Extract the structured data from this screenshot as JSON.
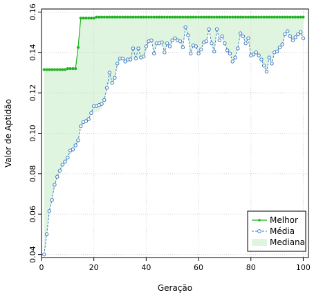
{
  "chart_data": {
    "type": "line",
    "xlabel": "Geração",
    "ylabel": "Valor de Aptidão",
    "xlim": [
      0,
      102
    ],
    "ylim": [
      0.0385,
      0.1615
    ],
    "xticks": [
      0,
      20,
      40,
      60,
      80,
      100
    ],
    "yticks": [
      0.04,
      0.06,
      0.08,
      0.1,
      0.12,
      0.14,
      0.16
    ],
    "ytick_labels": [
      "0.04",
      "0.06",
      "0.08",
      "0.10",
      "0.12",
      "0.14",
      "0.16"
    ],
    "grid": true,
    "legend_position": "bottom-right",
    "colors": {
      "melhor": "#22b222",
      "media": "#3a78c2",
      "mediana": "#dff5df"
    },
    "series": [
      {
        "name": "Melhor",
        "style": "solid line with filled points",
        "x": [
          1,
          2,
          3,
          4,
          5,
          6,
          7,
          8,
          9,
          10,
          11,
          12,
          13,
          14,
          15,
          16,
          17,
          18,
          19,
          20,
          21,
          22,
          23,
          24,
          25,
          26,
          27,
          28,
          29,
          30,
          31,
          32,
          33,
          34,
          35,
          36,
          37,
          38,
          39,
          40,
          41,
          42,
          43,
          44,
          45,
          46,
          47,
          48,
          49,
          50,
          51,
          52,
          53,
          54,
          55,
          56,
          57,
          58,
          59,
          60,
          61,
          62,
          63,
          64,
          65,
          66,
          67,
          68,
          69,
          70,
          71,
          72,
          73,
          74,
          75,
          76,
          77,
          78,
          79,
          80,
          81,
          82,
          83,
          84,
          85,
          86,
          87,
          88,
          89,
          90,
          91,
          92,
          93,
          94,
          95,
          96,
          97,
          98,
          99,
          100
        ],
        "values": [
          0.1315,
          0.1315,
          0.1315,
          0.1315,
          0.1315,
          0.1315,
          0.1315,
          0.1315,
          0.1315,
          0.132,
          0.132,
          0.132,
          0.132,
          0.1425,
          0.157,
          0.157,
          0.157,
          0.157,
          0.157,
          0.157,
          0.1575,
          0.1575,
          0.1575,
          0.1575,
          0.1575,
          0.1575,
          0.1575,
          0.1575,
          0.1575,
          0.1575,
          0.1575,
          0.1575,
          0.1575,
          0.1575,
          0.1575,
          0.1575,
          0.1575,
          0.1575,
          0.1575,
          0.1575,
          0.1575,
          0.1575,
          0.1575,
          0.1575,
          0.1575,
          0.1575,
          0.1575,
          0.1575,
          0.1575,
          0.1575,
          0.1575,
          0.1575,
          0.1575,
          0.1575,
          0.1575,
          0.1575,
          0.1575,
          0.1575,
          0.1575,
          0.1575,
          0.1575,
          0.1575,
          0.1575,
          0.1575,
          0.1575,
          0.1575,
          0.1575,
          0.1575,
          0.1575,
          0.1575,
          0.1575,
          0.1575,
          0.1575,
          0.1575,
          0.1575,
          0.1575,
          0.1575,
          0.1575,
          0.1575,
          0.1575,
          0.1575,
          0.1575,
          0.1575,
          0.1575,
          0.1575,
          0.1575,
          0.1575,
          0.1575,
          0.1575,
          0.1575,
          0.1575,
          0.1575,
          0.1575,
          0.1575,
          0.1575,
          0.1575,
          0.1575,
          0.1575,
          0.1575,
          0.1575
        ]
      },
      {
        "name": "Média",
        "style": "dashed line with open circles",
        "x": [
          1,
          2,
          3,
          4,
          5,
          6,
          7,
          8,
          9,
          10,
          11,
          12,
          13,
          14,
          15,
          16,
          17,
          18,
          19,
          20,
          21,
          22,
          23,
          24,
          25,
          26,
          27,
          28,
          29,
          30,
          31,
          32,
          33,
          34,
          35,
          36,
          37,
          38,
          39,
          40,
          41,
          42,
          43,
          44,
          45,
          46,
          47,
          48,
          49,
          50,
          51,
          52,
          53,
          54,
          55,
          56,
          57,
          58,
          59,
          60,
          61,
          62,
          63,
          64,
          65,
          66,
          67,
          68,
          69,
          70,
          71,
          72,
          73,
          74,
          75,
          76,
          77,
          78,
          79,
          80,
          81,
          82,
          83,
          84,
          85,
          86,
          87,
          88,
          89,
          90,
          91,
          92,
          93,
          94,
          95,
          96,
          97,
          98,
          99,
          100
        ],
        "values": [
          0.04,
          0.05,
          0.0615,
          0.067,
          0.0745,
          0.0785,
          0.0815,
          0.0845,
          0.086,
          0.088,
          0.0915,
          0.092,
          0.094,
          0.0965,
          0.1035,
          0.1055,
          0.106,
          0.107,
          0.11,
          0.1135,
          0.1135,
          0.114,
          0.1145,
          0.1165,
          0.1225,
          0.13,
          0.125,
          0.1275,
          0.1345,
          0.137,
          0.137,
          0.1355,
          0.1365,
          0.1365,
          0.142,
          0.137,
          0.142,
          0.1375,
          0.138,
          0.143,
          0.1455,
          0.146,
          0.1395,
          0.1445,
          0.1445,
          0.145,
          0.14,
          0.1445,
          0.143,
          0.146,
          0.147,
          0.146,
          0.1455,
          0.1425,
          0.1525,
          0.1485,
          0.1395,
          0.1435,
          0.143,
          0.1395,
          0.1415,
          0.145,
          0.1455,
          0.1515,
          0.1445,
          0.1405,
          0.1515,
          0.146,
          0.148,
          0.1445,
          0.141,
          0.1395,
          0.1355,
          0.1375,
          0.142,
          0.1495,
          0.148,
          0.1445,
          0.147,
          0.1385,
          0.139,
          0.14,
          0.1385,
          0.1365,
          0.1335,
          0.1305,
          0.1375,
          0.1345,
          0.14,
          0.1405,
          0.1425,
          0.144,
          0.149,
          0.1505,
          0.148,
          0.146,
          0.1475,
          0.149,
          0.15,
          0.147
        ]
      },
      {
        "name": "Mediana",
        "style": "filled area (range)",
        "x": [
          1,
          2,
          3,
          4,
          5,
          6,
          7,
          8,
          9,
          10,
          11,
          12,
          13,
          14,
          15,
          16,
          17,
          18,
          19,
          20,
          21,
          22,
          23,
          24,
          25,
          26,
          27,
          28,
          29,
          30,
          31,
          32,
          33,
          34,
          35,
          36,
          37,
          38,
          39,
          40,
          41,
          42,
          43,
          44,
          45,
          46,
          47,
          48,
          49,
          50,
          51,
          52,
          53,
          54,
          55,
          56,
          57,
          58,
          59,
          60,
          61,
          62,
          63,
          64,
          65,
          66,
          67,
          68,
          69,
          70,
          71,
          72,
          73,
          74,
          75,
          76,
          77,
          78,
          79,
          80,
          81,
          82,
          83,
          84,
          85,
          86,
          87,
          88,
          89,
          90,
          91,
          92,
          93,
          94,
          95,
          96,
          97,
          98,
          99,
          100
        ],
        "lower": [
          0.04,
          0.0485,
          0.06,
          0.067,
          0.073,
          0.077,
          0.08,
          0.0825,
          0.0845,
          0.0865,
          0.0895,
          0.091,
          0.094,
          0.0965,
          0.1035,
          0.1055,
          0.106,
          0.107,
          0.11,
          0.1105,
          0.1105,
          0.111,
          0.1125,
          0.1165,
          0.1225,
          0.125,
          0.125,
          0.1275,
          0.1345,
          0.136,
          0.136,
          0.1355,
          0.1365,
          0.1365,
          0.1375,
          0.137,
          0.1375,
          0.1375,
          0.138,
          0.14,
          0.1455,
          0.146,
          0.1395,
          0.1445,
          0.1445,
          0.145,
          0.14,
          0.1445,
          0.143,
          0.146,
          0.147,
          0.146,
          0.1455,
          0.1425,
          0.1525,
          0.1485,
          0.1395,
          0.1435,
          0.143,
          0.1395,
          0.1415,
          0.145,
          0.1455,
          0.1515,
          0.1445,
          0.1405,
          0.1515,
          0.146,
          0.148,
          0.1445,
          0.141,
          0.1395,
          0.1355,
          0.1375,
          0.142,
          0.1495,
          0.148,
          0.1445,
          0.147,
          0.1385,
          0.139,
          0.14,
          0.1385,
          0.1365,
          0.1335,
          0.1305,
          0.1375,
          0.1345,
          0.14,
          0.1405,
          0.1425,
          0.144,
          0.149,
          0.1505,
          0.148,
          0.146,
          0.1475,
          0.149,
          0.15,
          0.147
        ],
        "upper": [
          0.1315,
          0.1315,
          0.1315,
          0.1315,
          0.1315,
          0.1315,
          0.1315,
          0.1315,
          0.1315,
          0.132,
          0.132,
          0.132,
          0.132,
          0.1425,
          0.157,
          0.157,
          0.157,
          0.157,
          0.157,
          0.157,
          0.1575,
          0.1575,
          0.1575,
          0.1575,
          0.1575,
          0.1575,
          0.1575,
          0.1575,
          0.1575,
          0.1575,
          0.1575,
          0.1575,
          0.1575,
          0.1575,
          0.1575,
          0.1575,
          0.1575,
          0.1575,
          0.1575,
          0.1575,
          0.1575,
          0.1575,
          0.1575,
          0.1575,
          0.1575,
          0.1575,
          0.1575,
          0.1575,
          0.1575,
          0.1575,
          0.1575,
          0.1575,
          0.1575,
          0.1575,
          0.1575,
          0.1575,
          0.1575,
          0.1575,
          0.1575,
          0.1575,
          0.1575,
          0.1575,
          0.1575,
          0.1575,
          0.1575,
          0.1575,
          0.1575,
          0.1575,
          0.1575,
          0.1575,
          0.1575,
          0.1575,
          0.1575,
          0.1575,
          0.1575,
          0.1575,
          0.1575,
          0.1575,
          0.1575,
          0.1575,
          0.1575,
          0.1575,
          0.1575,
          0.1575,
          0.1575,
          0.1575,
          0.1575,
          0.1575,
          0.1575,
          0.1575,
          0.1575,
          0.1575,
          0.1575,
          0.1575,
          0.1575,
          0.1575,
          0.1575,
          0.1575,
          0.1575,
          0.1575
        ]
      }
    ]
  }
}
